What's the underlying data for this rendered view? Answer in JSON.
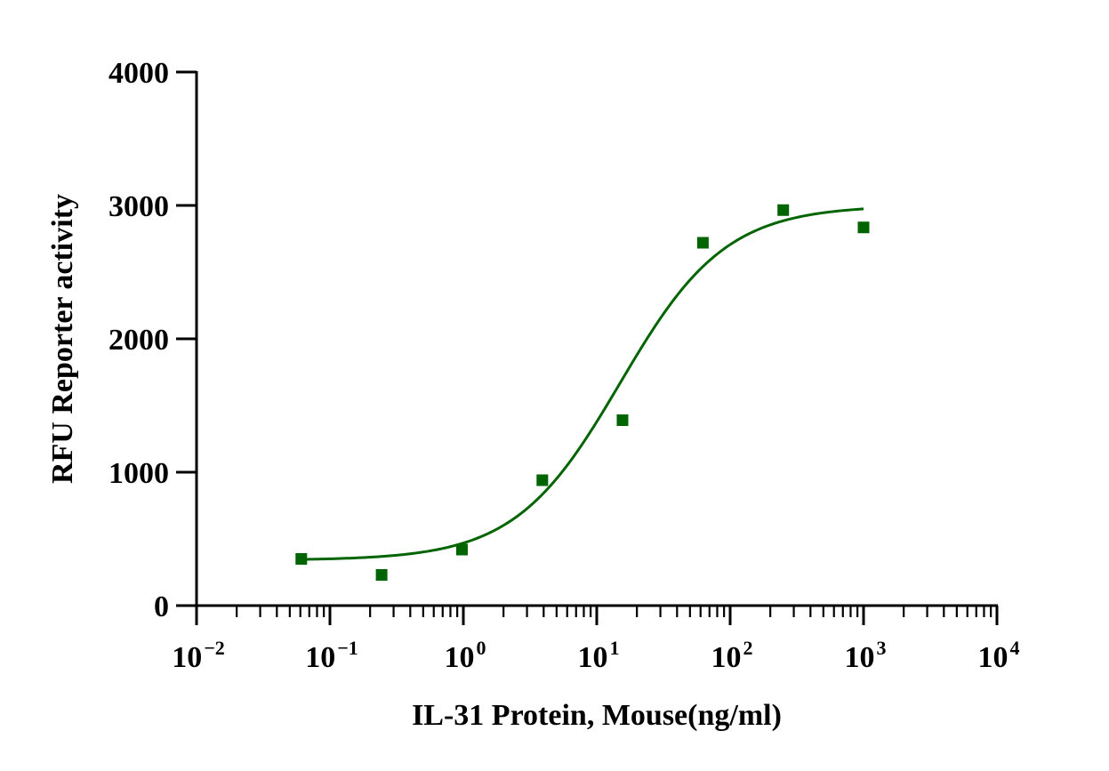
{
  "chart_data": {
    "type": "scatter",
    "xlabel": "IL-31 Protein, Mouse(ng/ml)",
    "ylabel": "RFU Reporter activity",
    "x_scale": "log10",
    "xlim": [
      0.01,
      10000
    ],
    "ylim": [
      0,
      4000
    ],
    "x_tick_labels": [
      {
        "base": "10",
        "exp": "-2"
      },
      {
        "base": "10",
        "exp": "-1"
      },
      {
        "base": "10",
        "exp": "0"
      },
      {
        "base": "10",
        "exp": "1"
      },
      {
        "base": "10",
        "exp": "2"
      },
      {
        "base": "10",
        "exp": "3"
      },
      {
        "base": "10",
        "exp": "4"
      }
    ],
    "y_tick_labels": [
      "0",
      "1000",
      "2000",
      "3000",
      "4000"
    ],
    "grid": false,
    "series": [
      {
        "marker": "square",
        "color": "#006400",
        "points": [
          {
            "x": 0.061,
            "y": 350
          },
          {
            "x": 0.244,
            "y": 230
          },
          {
            "x": 0.977,
            "y": 420
          },
          {
            "x": 3.91,
            "y": 940
          },
          {
            "x": 15.6,
            "y": 1390
          },
          {
            "x": 62.5,
            "y": 2720
          },
          {
            "x": 250,
            "y": 2965
          },
          {
            "x": 1000,
            "y": 2835
          }
        ]
      }
    ],
    "fit_curve": {
      "model": "four-parameter logistic",
      "color": "#006400",
      "bottom": 340,
      "top": 3000,
      "ec50": 15,
      "hill": 1.1,
      "x_range": [
        0.061,
        1000
      ]
    }
  }
}
